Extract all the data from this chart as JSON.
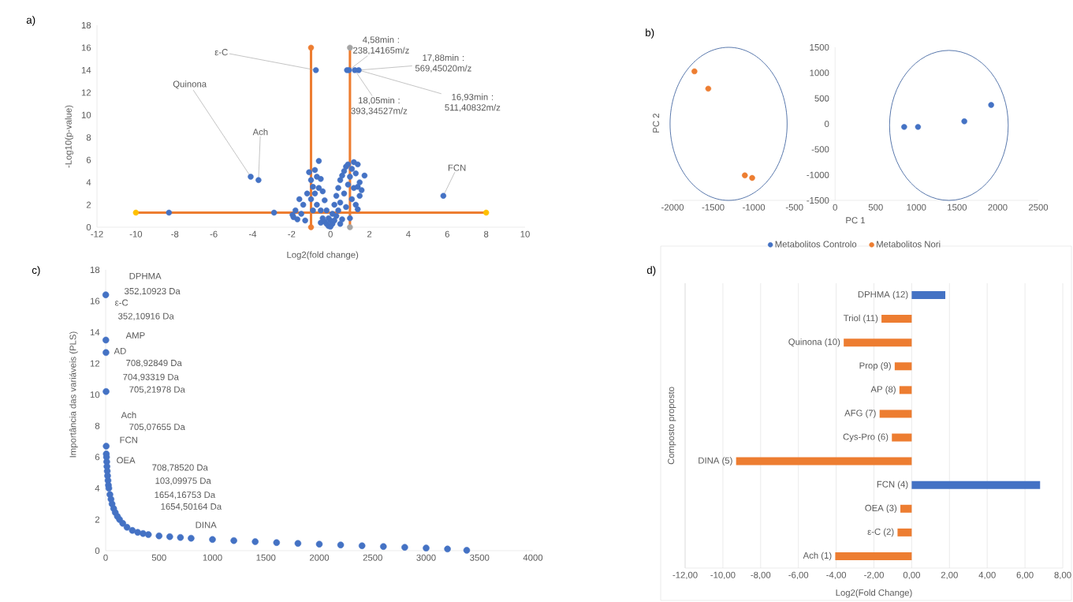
{
  "chart_data": [
    {
      "type": "scatter",
      "title": "a)",
      "xlabel": "Log2(fold change)",
      "ylabel": "-Log10(p-value)",
      "xlim": [
        -12,
        10
      ],
      "xticks": [
        -12,
        -10,
        -8,
        -6,
        -4,
        -2,
        0,
        2,
        4,
        6,
        8,
        10
      ],
      "ylim": [
        0,
        18
      ],
      "yticks": [
        0,
        2,
        4,
        6,
        8,
        10,
        12,
        14,
        16,
        18
      ],
      "marker": "circle",
      "series": [
        {
          "color": "#4472c4",
          "x": [
            -1.9,
            -1.95,
            -1.8,
            -1.7,
            -1.6,
            -1.5,
            -1.4,
            -1.3,
            -1.2,
            -1.1,
            -1.0,
            -1.0,
            -0.9,
            -0.9,
            -0.8,
            -0.8,
            -0.7,
            -0.7,
            -0.6,
            -0.6,
            -0.5,
            -0.5,
            -0.5,
            -0.4,
            -0.4,
            -0.3,
            -0.3,
            -0.2,
            -0.2,
            -0.1,
            -0.1,
            0,
            0,
            0.1,
            0.1,
            0.2,
            0.2,
            0.3,
            0.3,
            0.4,
            0.4,
            0.5,
            0.5,
            0.5,
            0.6,
            0.6,
            0.7,
            0.7,
            0.8,
            0.8,
            0.9,
            0.9,
            1.0,
            1.0,
            1.1,
            1.1,
            1.2,
            1.2,
            1.3,
            1.3,
            1.4,
            1.4,
            1.4,
            1.5,
            1.5,
            1.6,
            1.75,
            -8.3,
            -2.9,
            -4.1,
            -3.7,
            5.8,
            -0.75,
            0.85,
            0.95,
            1.25,
            1.45
          ],
          "values": [
            0.9,
            1.1,
            1.5,
            0.7,
            2.5,
            1.2,
            2.0,
            0.6,
            3.0,
            4.9,
            4.2,
            2.5,
            3.6,
            1.5,
            5.1,
            3.0,
            4.5,
            2.0,
            5.9,
            3.5,
            4.3,
            1.5,
            0.4,
            3.2,
            0.8,
            2.4,
            0.5,
            1.5,
            0.3,
            0.8,
            0.1,
            0.05,
            0.6,
            0.3,
            1.2,
            0.6,
            2.0,
            1.0,
            2.8,
            3.5,
            1.5,
            4.2,
            2.2,
            0.3,
            4.6,
            0.7,
            5.0,
            3.0,
            5.4,
            1.8,
            5.6,
            3.8,
            4.5,
            0.8,
            5.2,
            2.5,
            5.8,
            3.5,
            4.8,
            2.0,
            5.6,
            3.6,
            1.6,
            4.0,
            2.8,
            3.3,
            4.6,
            1.3,
            1.3,
            4.5,
            4.2,
            2.8,
            14,
            14,
            14,
            14,
            14
          ]
        },
        {
          "type": "line",
          "color": "#ed7d31",
          "x": [
            -1,
            -1
          ],
          "values": [
            0,
            16
          ],
          "colors": [
            "#ed7d31",
            "#ed7d31"
          ]
        },
        {
          "type": "line",
          "color": "#ed7d31",
          "x": [
            1,
            1
          ],
          "values": [
            0,
            16
          ],
          "colors": [
            "#a5a5a5",
            "#a5a5a5"
          ]
        },
        {
          "type": "line",
          "color": "#ed7d31",
          "x": [
            -10,
            8
          ],
          "values": [
            1.3,
            1.3
          ],
          "colors": [
            "#ffc000",
            "#ffc000"
          ]
        }
      ],
      "annotations": [
        {
          "text": "ε-C",
          "x": -0.75,
          "y": 14
        },
        {
          "text": "Quinona",
          "x": -4.1,
          "y": 4.5
        },
        {
          "text": "Ach",
          "x": -3.7,
          "y": 4.2
        },
        {
          "text": "FCN",
          "x": 5.8,
          "y": 2.8
        },
        {
          "text": "4,58min : 238,14165m/z",
          "x": 0.95,
          "y": 14
        },
        {
          "text": "17,88min : 569,45020m/z",
          "x": 1.45,
          "y": 14
        },
        {
          "text": "18,05min : 393,34527m/z",
          "x": 1.25,
          "y": 14
        },
        {
          "text": "16,93min : 511,40832m/z",
          "x": 1.45,
          "y": 14
        }
      ]
    },
    {
      "type": "scatter",
      "title": "b)",
      "xlabel": "PC 1",
      "ylabel": "PC 2",
      "xlim": [
        -2000,
        2500
      ],
      "xticks": [
        -2000,
        -1500,
        -1000,
        -500,
        0,
        500,
        1000,
        1500,
        2000,
        2500
      ],
      "ylim": [
        -1500,
        1500
      ],
      "yticks": [
        -1500,
        -1000,
        -500,
        0,
        500,
        1000,
        1500
      ],
      "marker": "circle",
      "legend": "bottom",
      "series": [
        {
          "name": "Metabolitos Controlo",
          "color": "#4472c4",
          "x": [
            850,
            1020,
            1590,
            1920
          ],
          "values": [
            -60,
            -60,
            50,
            370
          ]
        },
        {
          "name": "Metabolitos Nori",
          "color": "#ed7d31",
          "x": [
            -1730,
            -1560,
            -1110,
            -1020
          ],
          "values": [
            1030,
            690,
            -1010,
            -1060
          ]
        }
      ]
    },
    {
      "type": "scatter",
      "title": "c)",
      "ylabel": "Importância das variáveis (PLS)",
      "xlim": [
        0,
        4000
      ],
      "xticks": [
        0,
        500,
        1000,
        1500,
        2000,
        2500,
        3000,
        3500,
        4000
      ],
      "ylim": [
        0,
        18
      ],
      "yticks": [
        0,
        2,
        4,
        6,
        8,
        10,
        12,
        14,
        16,
        18
      ],
      "marker": "circle",
      "series": [
        {
          "color": "#4472c4",
          "x": [
            1,
            2,
            3,
            4,
            5,
            6,
            8,
            10,
            12,
            15,
            18,
            22,
            26,
            30,
            40,
            50,
            60,
            75,
            90,
            110,
            130,
            160,
            200,
            250,
            300,
            350,
            400,
            500,
            600,
            700,
            800,
            1000,
            1200,
            1400,
            1600,
            1800,
            2000,
            2200,
            2400,
            2600,
            2800,
            3000,
            3200,
            3380
          ],
          "values": [
            16.4,
            13.5,
            12.7,
            10.2,
            6.7,
            6.2,
            6.0,
            5.7,
            5.4,
            5.1,
            4.8,
            4.5,
            4.2,
            4.0,
            3.6,
            3.3,
            3.0,
            2.7,
            2.45,
            2.2,
            2.0,
            1.75,
            1.5,
            1.3,
            1.18,
            1.1,
            1.03,
            0.95,
            0.9,
            0.85,
            0.8,
            0.72,
            0.65,
            0.58,
            0.52,
            0.47,
            0.42,
            0.37,
            0.32,
            0.27,
            0.22,
            0.17,
            0.11,
            0.03
          ]
        }
      ],
      "annotations": [
        "DPHMA",
        "352,10923 Da",
        "ε-C",
        "352,10916 Da",
        "AMP",
        "AD",
        "708,92849 Da",
        "704,93319 Da",
        "705,21978 Da",
        "Ach",
        "705,07655 Da",
        "FCN",
        "OEA",
        "708,78520 Da",
        "103,09975 Da",
        "1654,16753 Da",
        "1654,50164 Da",
        "DINA"
      ]
    },
    {
      "type": "bar",
      "orientation": "horizontal",
      "title": "d)",
      "xlabel": "Log2(Fold Change)",
      "ylabel": "Composto proposto",
      "grid": "x",
      "categories": [
        "DPHMA (12)",
        "Triol (11)",
        "Quinona (10)",
        "Prop (9)",
        "AP (8)",
        "AFG (7)",
        "Cys-Pro (6)",
        "DINA (5)",
        "FCN (4)",
        "OEA (3)",
        "ε-C (2)",
        "Ach (1)"
      ],
      "values": [
        1.78,
        -1.6,
        -3.6,
        -0.9,
        -0.65,
        -1.7,
        -1.05,
        -9.3,
        6.8,
        -0.6,
        -0.75,
        -4.05
      ],
      "colors": [
        "#4472c4",
        "#ed7d31",
        "#ed7d31",
        "#ed7d31",
        "#ed7d31",
        "#ed7d31",
        "#ed7d31",
        "#ed7d31",
        "#4472c4",
        "#ed7d31",
        "#ed7d31",
        "#ed7d31"
      ],
      "xlim": [
        -12,
        8
      ],
      "xticks": [
        {
          "value": -12,
          "label": "-12,00"
        },
        {
          "value": -10,
          "label": "-10,00"
        },
        {
          "value": -8,
          "label": "-8,00"
        },
        {
          "value": -6,
          "label": "-6,00"
        },
        {
          "value": -4,
          "label": "-4,00"
        },
        {
          "value": -2,
          "label": "-2,00"
        },
        {
          "value": 0,
          "label": "0,00"
        },
        {
          "value": 2,
          "label": "2,00"
        },
        {
          "value": 4,
          "label": "4,00"
        },
        {
          "value": 6,
          "label": "6,00"
        },
        {
          "value": 8,
          "label": "8,00"
        }
      ]
    }
  ]
}
